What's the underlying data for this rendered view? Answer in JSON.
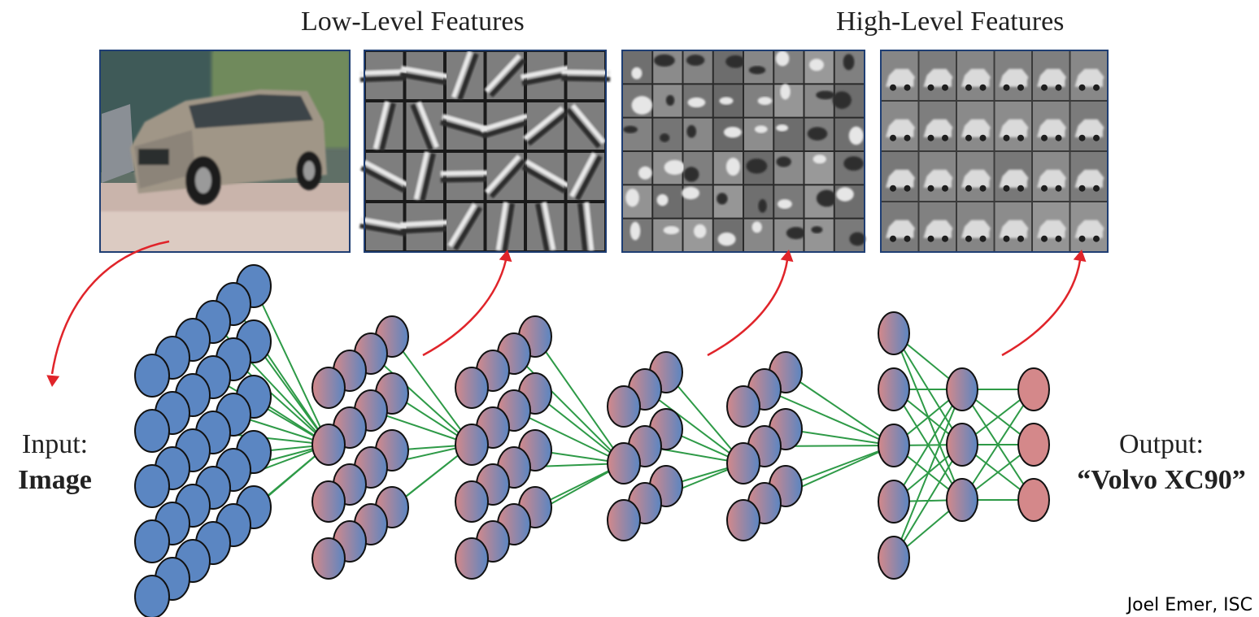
{
  "headings": {
    "low_level": "Low-Level Features",
    "high_level": "High-Level Features"
  },
  "input_label": {
    "line1": "Input:",
    "line2": "Image"
  },
  "output_label": {
    "line1": "Output:",
    "line2": "“Volvo XC90”"
  },
  "credit": "Joel Emer, ISC",
  "panels": [
    {
      "name": "input-image",
      "content": "photo of a silver Volvo XC90 SUV"
    },
    {
      "name": "low-level-filters",
      "grid_cols": 6,
      "grid_rows": 4
    },
    {
      "name": "mid-level-features",
      "grid_cols": 8,
      "grid_rows": 6
    },
    {
      "name": "high-level-features",
      "grid_cols": 6,
      "grid_rows": 4
    }
  ],
  "layers": [
    {
      "name": "input-layer",
      "columns": 6,
      "rows": 5,
      "style": "blue"
    },
    {
      "name": "conv-layer-1",
      "columns": 4,
      "rows": 4,
      "style": "gradient"
    },
    {
      "name": "conv-layer-2",
      "columns": 4,
      "rows": 4,
      "style": "gradient"
    },
    {
      "name": "conv-layer-3",
      "columns": 3,
      "rows": 3,
      "style": "gradient"
    },
    {
      "name": "conv-layer-4",
      "columns": 3,
      "rows": 3,
      "style": "gradient"
    },
    {
      "name": "fc-layer-1",
      "nodes": 5,
      "style": "gradient"
    },
    {
      "name": "fc-layer-2",
      "nodes": 3,
      "style": "gradient"
    },
    {
      "name": "output-layer",
      "nodes": 3,
      "style": "pink"
    }
  ],
  "colors": {
    "node_blue": "#5b86c2",
    "node_pink": "#d4888a",
    "connection": "#2e9a47",
    "arrow": "#e0242a",
    "panel_border": "#1f3e73",
    "node_outline": "#111111"
  }
}
